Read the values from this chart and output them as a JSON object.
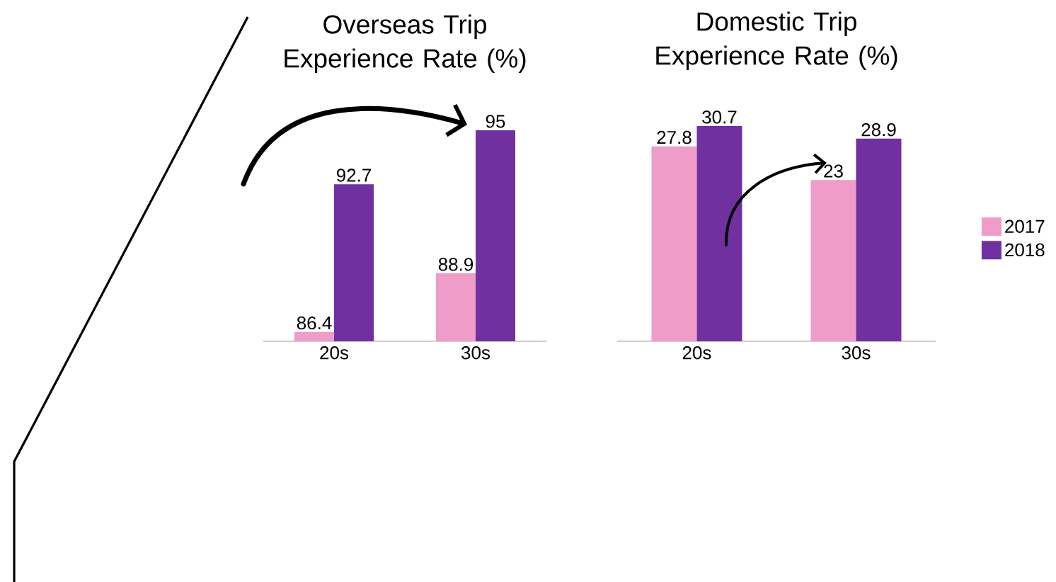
{
  "chart_data": [
    {
      "type": "bar",
      "title": "Overseas Trip Experience Rate (%)",
      "categories": [
        "20s",
        "30s"
      ],
      "ylim": [
        86,
        95
      ],
      "data_labels": true,
      "series": [
        {
          "color": "#f09cc8",
          "values": [
            86.4,
            88.9
          ]
        },
        {
          "color": "#7030a0",
          "values": [
            92.7,
            95
          ]
        }
      ]
    },
    {
      "type": "bar",
      "title": "Domestic Trip Experience Rate (%)",
      "categories": [
        "20s",
        "30s"
      ],
      "ylim": [
        0,
        31
      ],
      "data_labels": true,
      "legend": "right",
      "series": [
        {
          "name": "2017",
          "color": "#f09cc8",
          "values": [
            27.8,
            23
          ]
        },
        {
          "name": "2018",
          "color": "#7030a0",
          "values": [
            30.7,
            28.9
          ]
        }
      ]
    }
  ]
}
